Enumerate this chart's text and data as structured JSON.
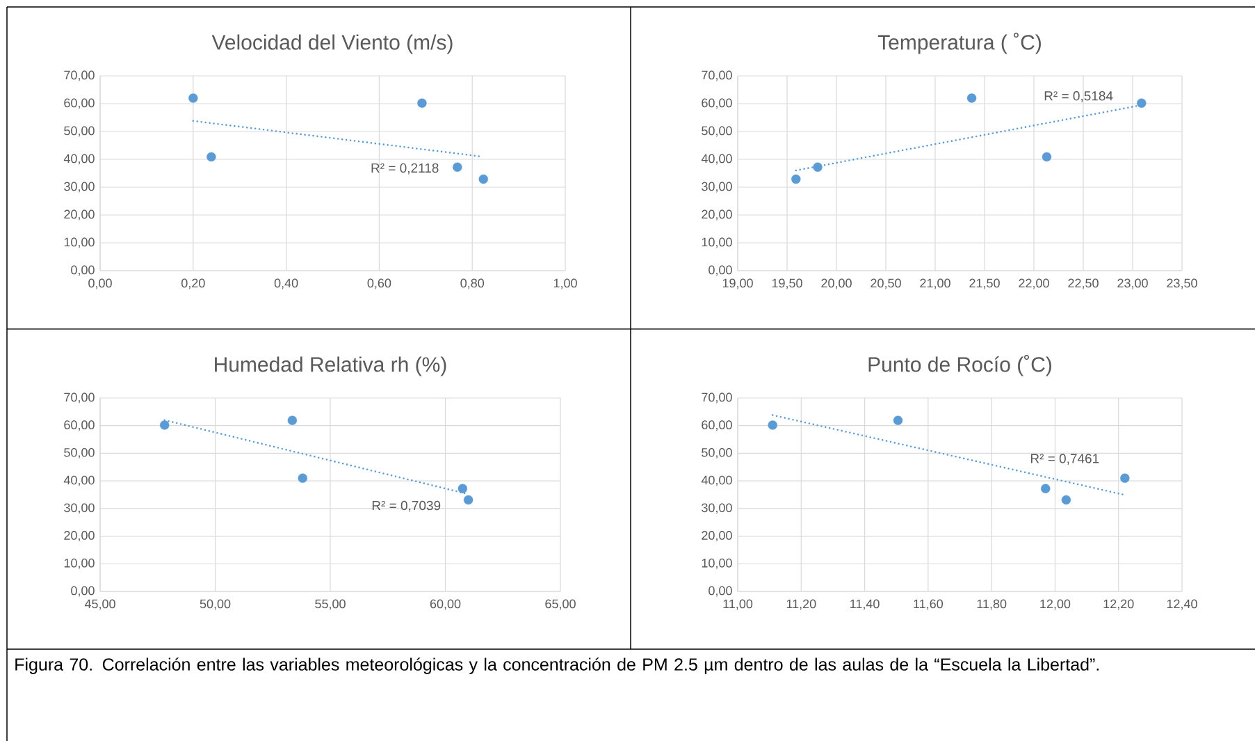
{
  "chart_data": [
    {
      "type": "scatter",
      "title": "Velocidad del Viento (m/s)",
      "grid": true,
      "xlim": [
        0,
        1
      ],
      "xticks": [
        {
          "value": 0,
          "label": "0,00"
        },
        {
          "value": 0.2,
          "label": "0,20"
        },
        {
          "value": 0.4,
          "label": "0,40"
        },
        {
          "value": 0.6,
          "label": "0,60"
        },
        {
          "value": 0.8,
          "label": "0,80"
        },
        {
          "value": 1,
          "label": "1,00"
        }
      ],
      "ylim": [
        0,
        70
      ],
      "yticks": [
        {
          "value": 0,
          "label": "0,00"
        },
        {
          "value": 10,
          "label": "10,00"
        },
        {
          "value": 20,
          "label": "20,00"
        },
        {
          "value": 30,
          "label": "30,00"
        },
        {
          "value": 40,
          "label": "40,00"
        },
        {
          "value": 50,
          "label": "50,00"
        },
        {
          "value": 60,
          "label": "60,00"
        },
        {
          "value": 70,
          "label": "70,00"
        }
      ],
      "series": [
        {
          "type": "scatter",
          "color": "#5b9bd5",
          "marker": "circle",
          "x": [
            0.2,
            0.239,
            0.692,
            0.768,
            0.824
          ],
          "values": [
            62.0,
            40.9,
            60.2,
            37.2,
            32.9
          ]
        },
        {
          "type": "line",
          "color": "#5b9bd5",
          "line_style": "dotted",
          "marker": "none",
          "x": [
            0.2,
            0.82
          ],
          "values": [
            53.8,
            41.0
          ]
        }
      ],
      "annotations": [
        "R² = 0,2118"
      ]
    },
    {
      "type": "scatter",
      "title": "Temperatura ( ˚C)",
      "grid": true,
      "xlim": [
        19,
        23.5
      ],
      "xticks": [
        {
          "value": 19,
          "label": "19,00"
        },
        {
          "value": 19.5,
          "label": "19,50"
        },
        {
          "value": 20,
          "label": "20,00"
        },
        {
          "value": 20.5,
          "label": "20,50"
        },
        {
          "value": 21,
          "label": "21,00"
        },
        {
          "value": 21.5,
          "label": "21,50"
        },
        {
          "value": 22,
          "label": "22,00"
        },
        {
          "value": 22.5,
          "label": "22,50"
        },
        {
          "value": 23,
          "label": "23,00"
        },
        {
          "value": 23.5,
          "label": "23,50"
        }
      ],
      "ylim": [
        0,
        70
      ],
      "yticks": [
        {
          "value": 0,
          "label": "0,00"
        },
        {
          "value": 10,
          "label": "10,00"
        },
        {
          "value": 20,
          "label": "20,00"
        },
        {
          "value": 30,
          "label": "30,00"
        },
        {
          "value": 40,
          "label": "40,00"
        },
        {
          "value": 50,
          "label": "50,00"
        },
        {
          "value": 60,
          "label": "60,00"
        },
        {
          "value": 70,
          "label": "70,00"
        }
      ],
      "series": [
        {
          "type": "scatter",
          "color": "#5b9bd5",
          "marker": "circle",
          "x": [
            19.59,
            19.81,
            21.37,
            22.13,
            23.09
          ],
          "values": [
            32.9,
            37.2,
            62.0,
            40.9,
            60.2
          ]
        },
        {
          "type": "line",
          "color": "#5b9bd5",
          "line_style": "dotted",
          "marker": "none",
          "x": [
            19.59,
            23.05
          ],
          "values": [
            36.0,
            59.2
          ]
        }
      ],
      "annotations": [
        "R² = 0,5184"
      ]
    },
    {
      "type": "scatter",
      "title": "Humedad Relativa rh (%)",
      "grid": true,
      "xlim": [
        45,
        65
      ],
      "xticks": [
        {
          "value": 45,
          "label": "45,00"
        },
        {
          "value": 50,
          "label": "50,00"
        },
        {
          "value": 55,
          "label": "55,00"
        },
        {
          "value": 60,
          "label": "60,00"
        },
        {
          "value": 65,
          "label": "65,00"
        }
      ],
      "ylim": [
        0,
        70
      ],
      "yticks": [
        {
          "value": 0,
          "label": "0,00"
        },
        {
          "value": 10,
          "label": "10,00"
        },
        {
          "value": 20,
          "label": "20,00"
        },
        {
          "value": 30,
          "label": "30,00"
        },
        {
          "value": 40,
          "label": "40,00"
        },
        {
          "value": 50,
          "label": "50,00"
        },
        {
          "value": 60,
          "label": "60,00"
        },
        {
          "value": 70,
          "label": "70,00"
        }
      ],
      "series": [
        {
          "type": "scatter",
          "color": "#5b9bd5",
          "marker": "circle",
          "x": [
            47.8,
            53.35,
            53.8,
            60.75,
            61.0
          ],
          "values": [
            60.2,
            61.9,
            41.0,
            37.2,
            33.1
          ]
        },
        {
          "type": "line",
          "color": "#5b9bd5",
          "line_style": "dotted",
          "marker": "none",
          "x": [
            47.8,
            61.0
          ],
          "values": [
            62.0,
            35.2
          ]
        }
      ],
      "annotations": [
        "R² = 0,7039"
      ]
    },
    {
      "type": "scatter",
      "title": "Punto de Rocío (˚C)",
      "grid": true,
      "xlim": [
        11,
        12.4
      ],
      "xticks": [
        {
          "value": 11,
          "label": "11,00"
        },
        {
          "value": 11.2,
          "label": "11,20"
        },
        {
          "value": 11.4,
          "label": "11,40"
        },
        {
          "value": 11.6,
          "label": "11,60"
        },
        {
          "value": 11.8,
          "label": "11,80"
        },
        {
          "value": 12,
          "label": "12,00"
        },
        {
          "value": 12.2,
          "label": "12,20"
        },
        {
          "value": 12.4,
          "label": "12,40"
        }
      ],
      "ylim": [
        0,
        70
      ],
      "yticks": [
        {
          "value": 0,
          "label": "0,00"
        },
        {
          "value": 10,
          "label": "10,00"
        },
        {
          "value": 20,
          "label": "20,00"
        },
        {
          "value": 30,
          "label": "30,00"
        },
        {
          "value": 40,
          "label": "40,00"
        },
        {
          "value": 50,
          "label": "50,00"
        },
        {
          "value": 60,
          "label": "60,00"
        },
        {
          "value": 70,
          "label": "70,00"
        }
      ],
      "series": [
        {
          "type": "scatter",
          "color": "#5b9bd5",
          "marker": "circle",
          "x": [
            11.11,
            11.505,
            11.97,
            12.035,
            12.22
          ],
          "values": [
            60.2,
            61.9,
            37.2,
            33.1,
            41.0
          ]
        },
        {
          "type": "line",
          "color": "#5b9bd5",
          "line_style": "dotted",
          "marker": "none",
          "x": [
            11.11,
            12.22
          ],
          "values": [
            63.8,
            34.9
          ]
        }
      ],
      "annotations": [
        "R² = 0,7461",
        "Figura 70. Correlación entre las variables meteorológicas y la concentración de PM 2.5 µm dentro de las aulas de la “Escuela la Libertad”."
      ]
    }
  ]
}
